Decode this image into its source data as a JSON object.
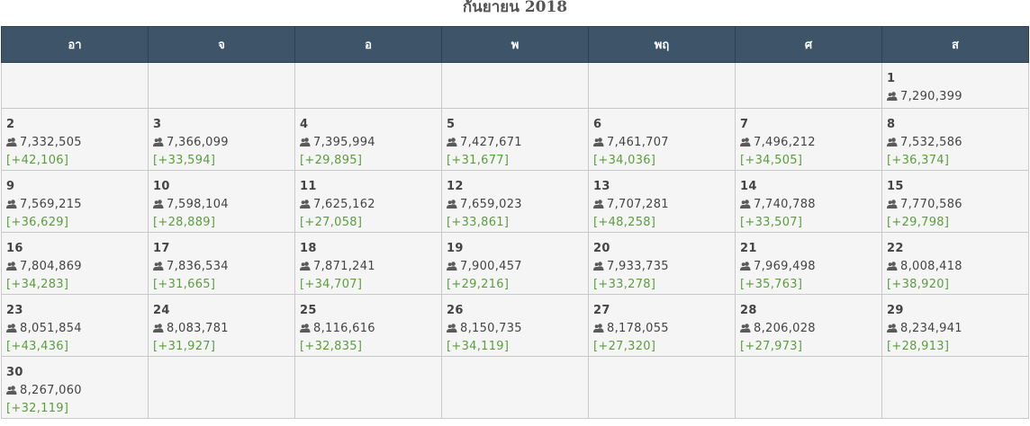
{
  "title": "กันยายน 2018",
  "weekdays": [
    "อา",
    "จ",
    "อ",
    "พ",
    "พฤ",
    "ศ",
    "ส"
  ],
  "icon": "users-icon",
  "colors": {
    "header_bg": "#3e5468",
    "delta": "#5a9e3c",
    "cell_bg": "#f5f5f5"
  },
  "days": {
    "d1": {
      "day": "1",
      "total": "7,290,399",
      "delta": ""
    },
    "d2": {
      "day": "2",
      "total": "7,332,505",
      "delta": "[+42,106]"
    },
    "d3": {
      "day": "3",
      "total": "7,366,099",
      "delta": "[+33,594]"
    },
    "d4": {
      "day": "4",
      "total": "7,395,994",
      "delta": "[+29,895]"
    },
    "d5": {
      "day": "5",
      "total": "7,427,671",
      "delta": "[+31,677]"
    },
    "d6": {
      "day": "6",
      "total": "7,461,707",
      "delta": "[+34,036]"
    },
    "d7": {
      "day": "7",
      "total": "7,496,212",
      "delta": "[+34,505]"
    },
    "d8": {
      "day": "8",
      "total": "7,532,586",
      "delta": "[+36,374]"
    },
    "d9": {
      "day": "9",
      "total": "7,569,215",
      "delta": "[+36,629]"
    },
    "d10": {
      "day": "10",
      "total": "7,598,104",
      "delta": "[+28,889]"
    },
    "d11": {
      "day": "11",
      "total": "7,625,162",
      "delta": "[+27,058]"
    },
    "d12": {
      "day": "12",
      "total": "7,659,023",
      "delta": "[+33,861]"
    },
    "d13": {
      "day": "13",
      "total": "7,707,281",
      "delta": "[+48,258]"
    },
    "d14": {
      "day": "14",
      "total": "7,740,788",
      "delta": "[+33,507]"
    },
    "d15": {
      "day": "15",
      "total": "7,770,586",
      "delta": "[+29,798]"
    },
    "d16": {
      "day": "16",
      "total": "7,804,869",
      "delta": "[+34,283]"
    },
    "d17": {
      "day": "17",
      "total": "7,836,534",
      "delta": "[+31,665]"
    },
    "d18": {
      "day": "18",
      "total": "7,871,241",
      "delta": "[+34,707]"
    },
    "d19": {
      "day": "19",
      "total": "7,900,457",
      "delta": "[+29,216]"
    },
    "d20": {
      "day": "20",
      "total": "7,933,735",
      "delta": "[+33,278]"
    },
    "d21": {
      "day": "21",
      "total": "7,969,498",
      "delta": "[+35,763]"
    },
    "d22": {
      "day": "22",
      "total": "8,008,418",
      "delta": "[+38,920]"
    },
    "d23": {
      "day": "23",
      "total": "8,051,854",
      "delta": "[+43,436]"
    },
    "d24": {
      "day": "24",
      "total": "8,083,781",
      "delta": "[+31,927]"
    },
    "d25": {
      "day": "25",
      "total": "8,116,616",
      "delta": "[+32,835]"
    },
    "d26": {
      "day": "26",
      "total": "8,150,735",
      "delta": "[+34,119]"
    },
    "d27": {
      "day": "27",
      "total": "8,178,055",
      "delta": "[+27,320]"
    },
    "d28": {
      "day": "28",
      "total": "8,206,028",
      "delta": "[+27,973]"
    },
    "d29": {
      "day": "29",
      "total": "8,234,941",
      "delta": "[+28,913]"
    },
    "d30": {
      "day": "30",
      "total": "8,267,060",
      "delta": "[+32,119]"
    }
  }
}
